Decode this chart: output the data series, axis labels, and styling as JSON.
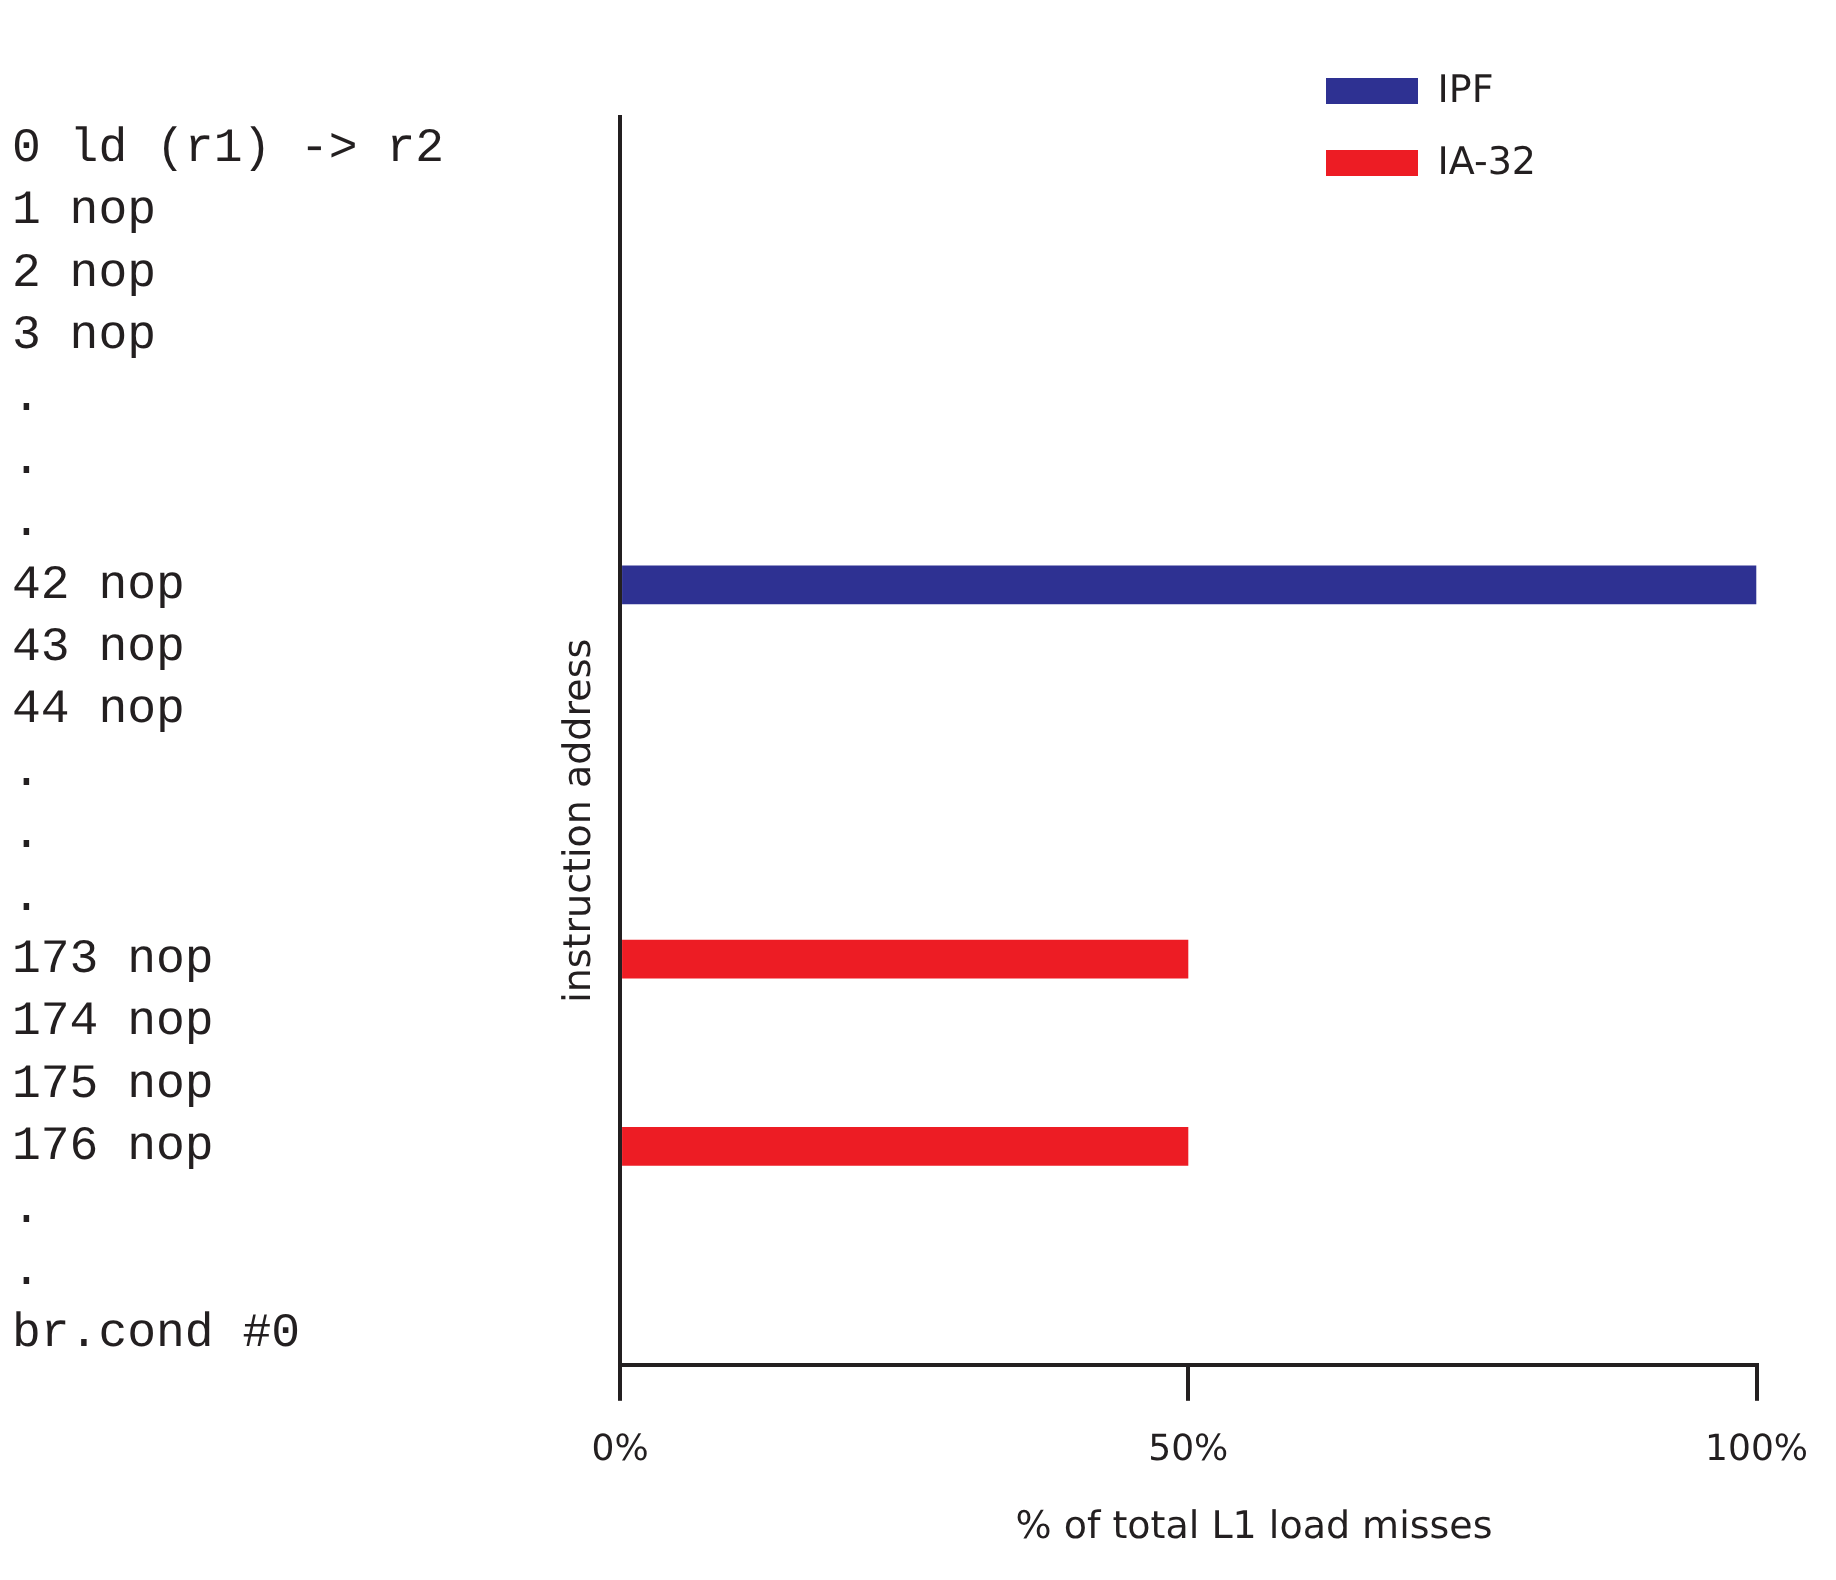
{
  "chart_data": {
    "type": "bar",
    "orientation": "horizontal",
    "xlabel": "% of total L1 load misses",
    "ylabel": "instruction address",
    "categories": [
      "0 ld (r1) -> r2",
      "1 nop",
      "2 nop",
      "3 nop",
      ".",
      ".",
      ".",
      "42 nop",
      "43 nop",
      "44 nop",
      ".",
      ".",
      ".",
      "173 nop",
      "174 nop",
      "175 nop",
      "176 nop",
      ".",
      ".",
      "br.cond #0"
    ],
    "series": [
      {
        "name": "IPF",
        "color": "#2e3192",
        "values": [
          null,
          null,
          null,
          null,
          null,
          null,
          null,
          100,
          null,
          null,
          null,
          null,
          null,
          null,
          null,
          null,
          null,
          null,
          null,
          null
        ]
      },
      {
        "name": "IA-32",
        "color": "#ed1c24",
        "values": [
          null,
          null,
          null,
          null,
          null,
          null,
          null,
          null,
          null,
          null,
          null,
          null,
          null,
          50,
          null,
          null,
          50,
          null,
          null,
          null
        ]
      }
    ],
    "xlim": [
      0,
      100
    ],
    "xticks": [
      {
        "value": 0,
        "label": "0%"
      },
      {
        "value": 50,
        "label": "50%"
      },
      {
        "value": 100,
        "label": "100%"
      }
    ],
    "grid": false,
    "legend": "top right"
  }
}
